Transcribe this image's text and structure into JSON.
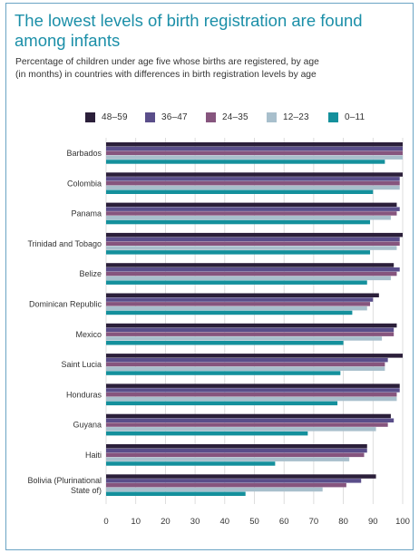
{
  "header": {
    "title_line1": "The lowest levels of birth registration are found",
    "title_line2": "among infants",
    "subtitle_line1": "Percentage of children under age five whose births are registered, by age",
    "subtitle_line2": "(in months) in countries with differences in birth registration levels by age"
  },
  "chart_data": {
    "type": "bar",
    "orientation": "horizontal",
    "categories": [
      "Barbados",
      "Colombia",
      "Panama",
      "Trinidad and Tobago",
      "Belize",
      "Dominican Republic",
      "Mexico",
      "Saint Lucia",
      "Honduras",
      "Guyana",
      "Haiti",
      "Bolivia (Plurinational State of)"
    ],
    "category_lines": [
      [
        "Barbados"
      ],
      [
        "Colombia"
      ],
      [
        "Panama"
      ],
      [
        "Trinidad and Tobago"
      ],
      [
        "Belize"
      ],
      [
        "Dominican Republic"
      ],
      [
        "Mexico"
      ],
      [
        "Saint Lucia"
      ],
      [
        "Honduras"
      ],
      [
        "Guyana"
      ],
      [
        "Haiti"
      ],
      [
        "Bolivia (Plurinational",
        "State of)"
      ]
    ],
    "series": [
      {
        "name": "48–59",
        "color": "#2b1f3a",
        "values": [
          100,
          100,
          98,
          100,
          97,
          92,
          98,
          100,
          99,
          96,
          88,
          91
        ]
      },
      {
        "name": "36–47",
        "color": "#5a4e8a",
        "values": [
          100,
          99,
          99,
          99,
          99,
          90,
          97,
          95,
          99,
          97,
          88,
          86
        ]
      },
      {
        "name": "24–35",
        "color": "#86557e",
        "values": [
          100,
          99,
          98,
          99,
          98,
          89,
          97,
          94,
          98,
          95,
          87,
          81
        ]
      },
      {
        "name": "12–23",
        "color": "#a8bfcc",
        "values": [
          100,
          99,
          96,
          98,
          96,
          88,
          93,
          94,
          98,
          91,
          82,
          73
        ]
      },
      {
        "name": "0–11",
        "color": "#14909c",
        "values": [
          94,
          90,
          89,
          89,
          88,
          83,
          80,
          79,
          78,
          68,
          57,
          47
        ]
      }
    ],
    "xlim": [
      0,
      100
    ],
    "xticks": [
      "0",
      "10",
      "20",
      "30",
      "40",
      "50",
      "60",
      "70",
      "80",
      "90",
      "100"
    ],
    "grid": true,
    "legend_position": "top"
  }
}
